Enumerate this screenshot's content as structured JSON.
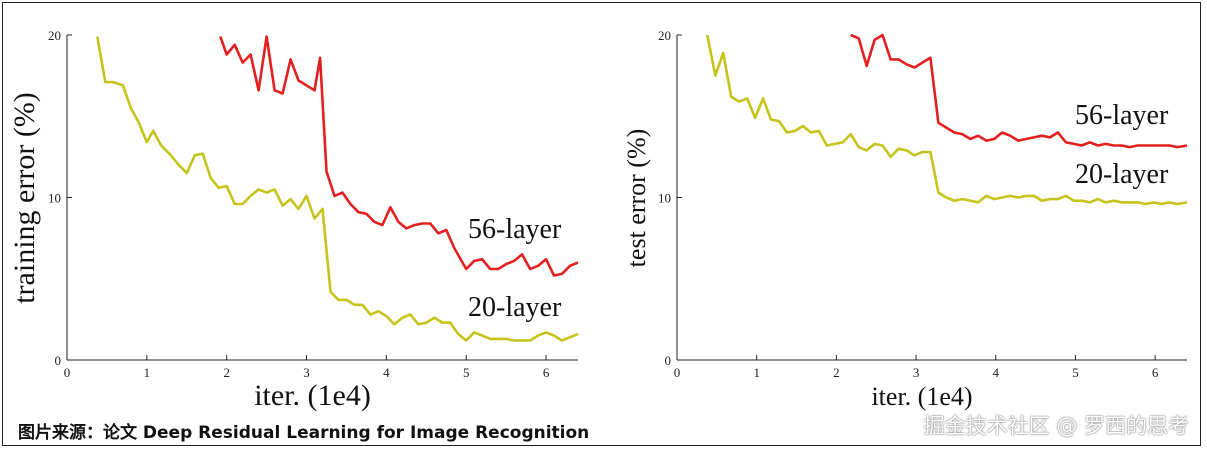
{
  "caption": "图片来源：论文 Deep Residual Learning for Image Recognition",
  "watermark": "掘金技术社区 @ 罗西的思考",
  "colors": {
    "series_56": "#e3201f",
    "series_20": "#c6c31a",
    "axis": "#222222"
  },
  "chart_data": [
    {
      "type": "line",
      "title": "",
      "xlabel": "iter. (1e4)",
      "ylabel": "training error (%)",
      "xlim": [
        0,
        6.4
      ],
      "ylim": [
        0,
        20
      ],
      "xticks": [
        0,
        1,
        2,
        3,
        4,
        5,
        6
      ],
      "yticks": [
        0,
        10,
        20
      ],
      "grid": false,
      "series": [
        {
          "name": "56-layer",
          "color": "#e3201f",
          "x": [
            1.92,
            2.0,
            2.1,
            2.2,
            2.3,
            2.4,
            2.5,
            2.6,
            2.7,
            2.8,
            2.9,
            3.0,
            3.1,
            3.17,
            3.25,
            3.35,
            3.45,
            3.55,
            3.65,
            3.75,
            3.85,
            3.95,
            4.05,
            4.15,
            4.25,
            4.35,
            4.45,
            4.55,
            4.65,
            4.75,
            4.85,
            5.0,
            5.1,
            5.2,
            5.3,
            5.4,
            5.5,
            5.6,
            5.7,
            5.8,
            5.9,
            6.0,
            6.1,
            6.2,
            6.3,
            6.4
          ],
          "values": [
            19.9,
            18.8,
            19.4,
            18.3,
            18.8,
            16.6,
            19.9,
            16.6,
            16.4,
            18.5,
            17.2,
            16.9,
            16.6,
            18.6,
            11.6,
            10.1,
            10.3,
            9.6,
            9.1,
            9.0,
            8.5,
            8.3,
            9.4,
            8.5,
            8.1,
            8.3,
            8.4,
            8.4,
            7.8,
            8.0,
            6.9,
            5.6,
            6.1,
            6.2,
            5.6,
            5.6,
            5.9,
            6.1,
            6.5,
            5.6,
            5.8,
            6.2,
            5.2,
            5.3,
            5.8,
            6.0
          ]
        },
        {
          "name": "20-layer",
          "color": "#c6c31a",
          "x": [
            0.38,
            0.48,
            0.58,
            0.7,
            0.8,
            0.9,
            1.0,
            1.08,
            1.18,
            1.3,
            1.4,
            1.5,
            1.6,
            1.7,
            1.8,
            1.9,
            2.0,
            2.1,
            2.2,
            2.3,
            2.4,
            2.5,
            2.6,
            2.7,
            2.8,
            2.9,
            3.0,
            3.1,
            3.2,
            3.3,
            3.4,
            3.5,
            3.6,
            3.7,
            3.8,
            3.9,
            4.0,
            4.1,
            4.2,
            4.3,
            4.4,
            4.5,
            4.6,
            4.7,
            4.8,
            4.9,
            5.0,
            5.1,
            5.2,
            5.3,
            5.4,
            5.5,
            5.6,
            5.7,
            5.8,
            5.9,
            6.0,
            6.1,
            6.2,
            6.3,
            6.4
          ],
          "values": [
            19.9,
            17.1,
            17.1,
            16.9,
            15.5,
            14.6,
            13.4,
            14.1,
            13.2,
            12.6,
            12.0,
            11.5,
            12.6,
            12.7,
            11.2,
            10.6,
            10.7,
            9.6,
            9.6,
            10.1,
            10.5,
            10.3,
            10.5,
            9.5,
            9.9,
            9.3,
            10.1,
            8.7,
            9.3,
            4.2,
            3.7,
            3.7,
            3.4,
            3.4,
            2.8,
            3.0,
            2.7,
            2.2,
            2.6,
            2.8,
            2.2,
            2.3,
            2.6,
            2.3,
            2.3,
            1.6,
            1.2,
            1.7,
            1.5,
            1.3,
            1.3,
            1.3,
            1.2,
            1.2,
            1.2,
            1.5,
            1.7,
            1.5,
            1.2,
            1.4,
            1.6
          ]
        }
      ]
    },
    {
      "type": "line",
      "title": "",
      "xlabel": "iter. (1e4)",
      "ylabel": "test error (%)",
      "xlim": [
        0,
        6.4
      ],
      "ylim": [
        0,
        20
      ],
      "xticks": [
        0,
        1,
        2,
        3,
        4,
        5,
        6
      ],
      "yticks": [
        0,
        10,
        20
      ],
      "grid": false,
      "series": [
        {
          "name": "56-layer",
          "color": "#e3201f",
          "x": [
            2.18,
            2.28,
            2.38,
            2.48,
            2.58,
            2.68,
            2.78,
            2.88,
            2.98,
            3.08,
            3.18,
            3.28,
            3.38,
            3.48,
            3.58,
            3.68,
            3.78,
            3.88,
            3.98,
            4.08,
            4.18,
            4.28,
            4.38,
            4.48,
            4.58,
            4.68,
            4.78,
            4.88,
            4.98,
            5.08,
            5.18,
            5.28,
            5.38,
            5.48,
            5.58,
            5.68,
            5.78,
            5.88,
            5.98,
            6.08,
            6.18,
            6.28,
            6.4
          ],
          "values": [
            20.0,
            19.8,
            18.1,
            19.7,
            20.0,
            18.5,
            18.5,
            18.2,
            18.0,
            18.3,
            18.6,
            14.6,
            14.3,
            14.0,
            13.9,
            13.6,
            13.8,
            13.5,
            13.6,
            14.0,
            13.8,
            13.5,
            13.6,
            13.7,
            13.8,
            13.7,
            14.0,
            13.4,
            13.3,
            13.2,
            13.4,
            13.2,
            13.3,
            13.2,
            13.2,
            13.1,
            13.2,
            13.2,
            13.2,
            13.2,
            13.2,
            13.1,
            13.2
          ]
        },
        {
          "name": "20-layer",
          "color": "#c6c31a",
          "x": [
            0.38,
            0.48,
            0.58,
            0.68,
            0.78,
            0.88,
            0.98,
            1.08,
            1.18,
            1.28,
            1.38,
            1.48,
            1.58,
            1.68,
            1.78,
            1.88,
            1.98,
            2.08,
            2.18,
            2.28,
            2.38,
            2.48,
            2.58,
            2.68,
            2.78,
            2.88,
            2.98,
            3.08,
            3.18,
            3.28,
            3.38,
            3.48,
            3.58,
            3.68,
            3.78,
            3.88,
            3.98,
            4.08,
            4.18,
            4.28,
            4.38,
            4.48,
            4.58,
            4.68,
            4.78,
            4.88,
            4.98,
            5.08,
            5.18,
            5.28,
            5.38,
            5.48,
            5.58,
            5.68,
            5.78,
            5.88,
            5.98,
            6.08,
            6.18,
            6.28,
            6.4
          ],
          "values": [
            20.0,
            17.5,
            18.9,
            16.2,
            15.9,
            16.1,
            14.9,
            16.1,
            14.8,
            14.7,
            14.0,
            14.1,
            14.4,
            14.0,
            14.1,
            13.2,
            13.3,
            13.4,
            13.9,
            13.1,
            12.9,
            13.3,
            13.2,
            12.5,
            13.0,
            12.9,
            12.6,
            12.8,
            12.8,
            10.3,
            10.0,
            9.8,
            9.9,
            9.8,
            9.7,
            10.1,
            9.9,
            10.0,
            10.1,
            10.0,
            10.1,
            10.1,
            9.8,
            9.9,
            9.9,
            10.1,
            9.8,
            9.8,
            9.7,
            9.9,
            9.7,
            9.8,
            9.7,
            9.7,
            9.7,
            9.6,
            9.7,
            9.6,
            9.7,
            9.6,
            9.7
          ]
        }
      ]
    }
  ]
}
